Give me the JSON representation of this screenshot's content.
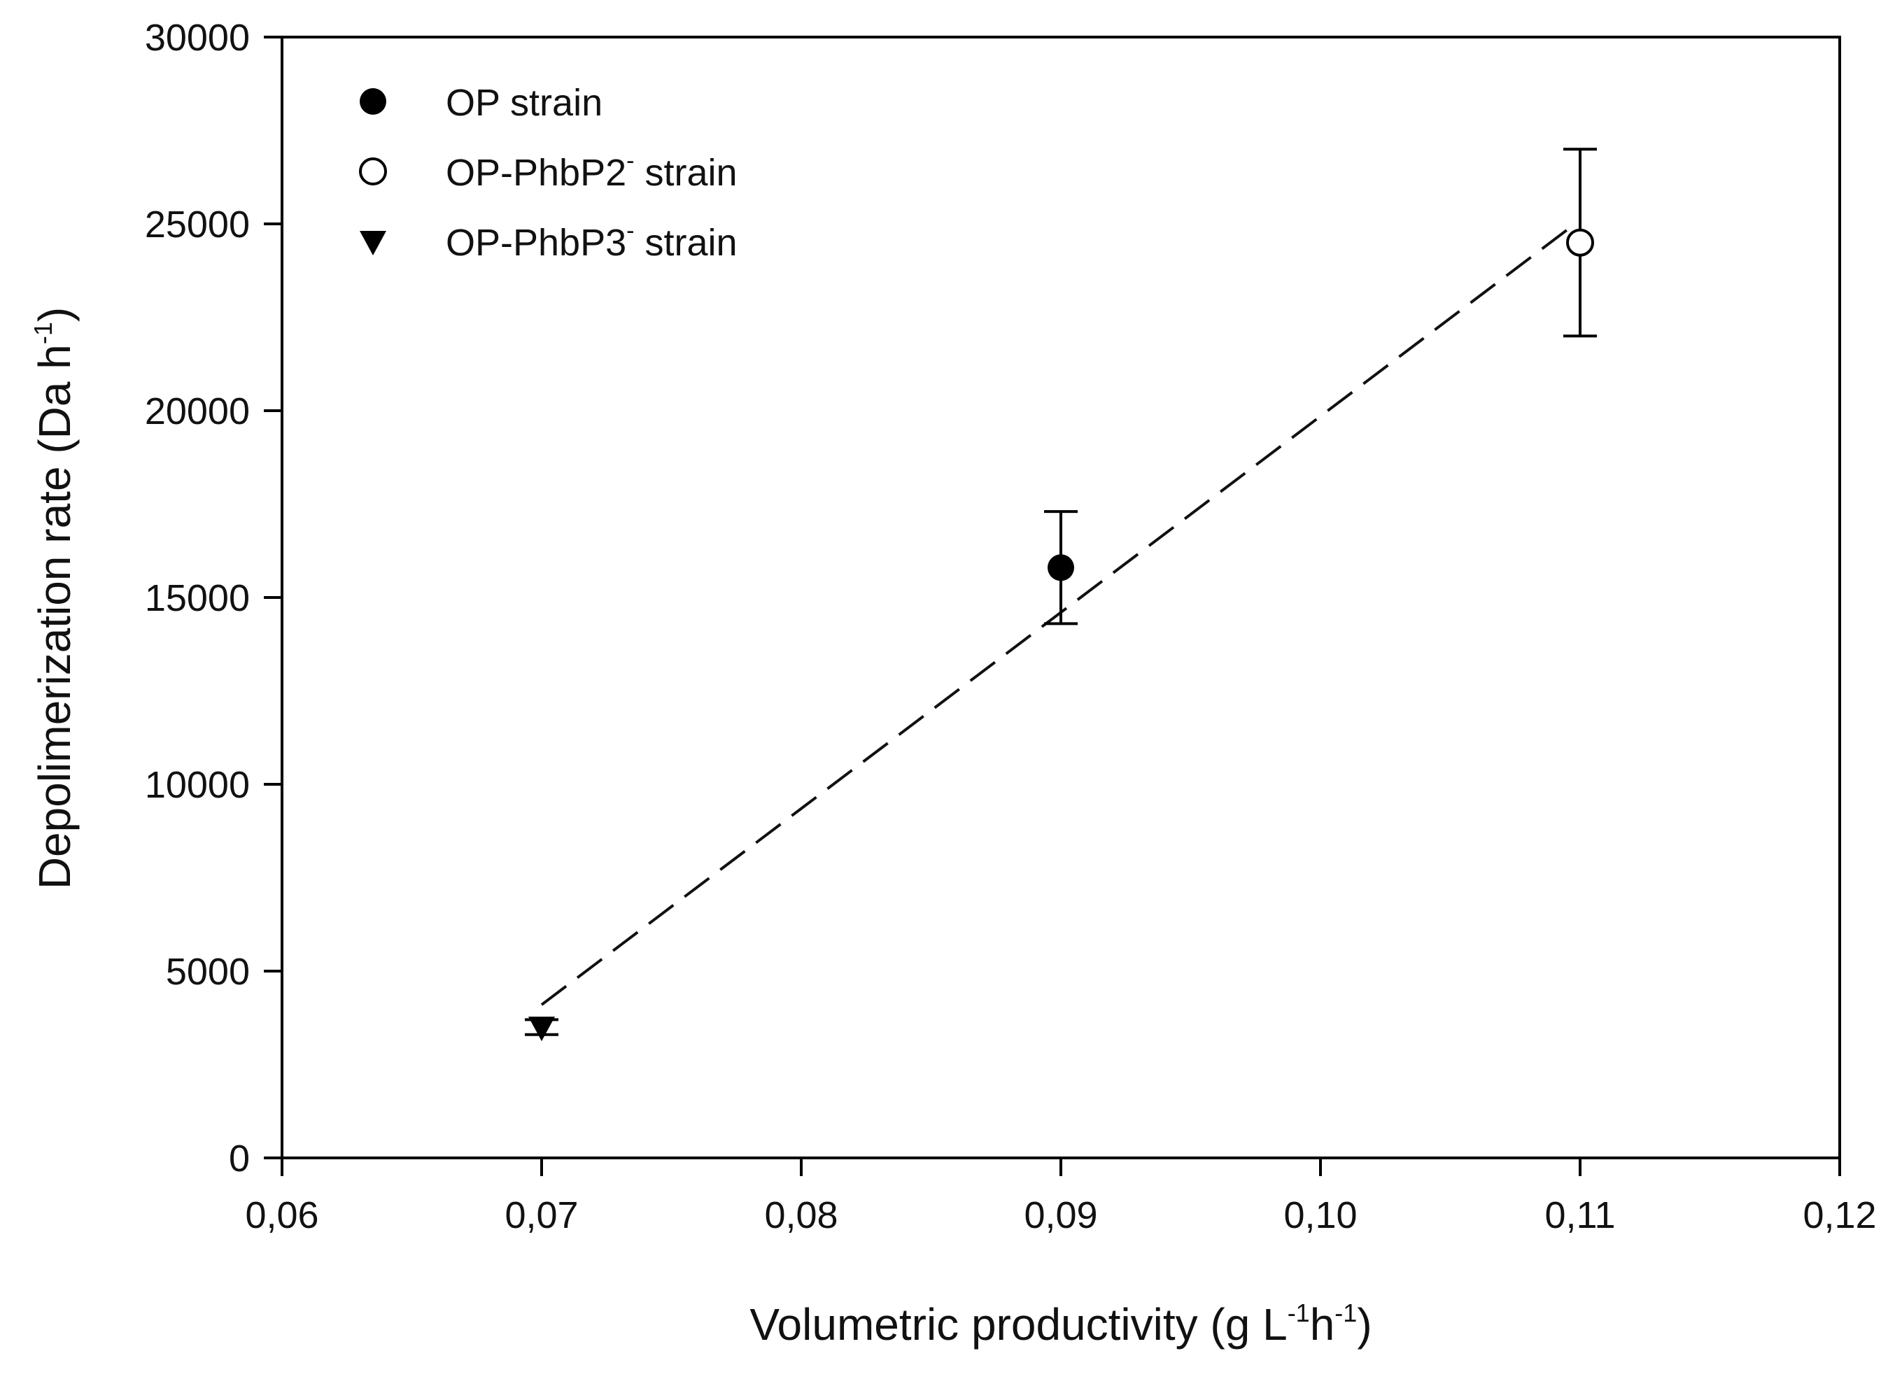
{
  "chart_data": {
    "type": "scatter",
    "title": "",
    "xlabel": "Volumetric productivity (g L",
    "xlabel_parts": [
      "Volumetric productivity (g L",
      "-1",
      "h",
      "-1",
      ")"
    ],
    "ylabel_parts": [
      "Depolimerization rate (Da h",
      "-1",
      ")"
    ],
    "xlim": [
      0.06,
      0.12
    ],
    "ylim": [
      0,
      30000
    ],
    "x_ticks": [
      0.06,
      0.07,
      0.08,
      0.09,
      0.1,
      0.11,
      0.12
    ],
    "x_tick_labels": [
      "0,06",
      "0,07",
      "0,08",
      "0,09",
      "0,10",
      "0,11",
      "0,12"
    ],
    "y_ticks": [
      0,
      5000,
      10000,
      15000,
      20000,
      25000,
      30000
    ],
    "y_tick_labels": [
      "0",
      "5000",
      "10000",
      "15000",
      "20000",
      "25000",
      "30000"
    ],
    "grid": false,
    "legend_position": "top-left",
    "series": [
      {
        "name": "OP strain",
        "label_main": "OP strain",
        "label_sup": "",
        "label_tail": "",
        "marker": "filled-circle",
        "x": [
          0.09
        ],
        "y": [
          15800
        ],
        "err_low": [
          14300
        ],
        "err_high": [
          17300
        ]
      },
      {
        "name": "OP-PhbP2- strain",
        "label_main": "OP-PhbP2",
        "label_sup": "-",
        "label_tail": " strain",
        "marker": "open-circle",
        "x": [
          0.11
        ],
        "y": [
          24500
        ],
        "err_low": [
          22000
        ],
        "err_high": [
          27000
        ]
      },
      {
        "name": "OP-PhbP3- strain",
        "label_main": "OP-PhbP3",
        "label_sup": "-",
        "label_tail": " strain",
        "marker": "filled-triangle-down",
        "x": [
          0.07
        ],
        "y": [
          3500
        ],
        "err_low": [
          3300
        ],
        "err_high": [
          3700
        ]
      }
    ],
    "fit_line": {
      "style": "dashed",
      "x": [
        0.07,
        0.1095
      ],
      "y": [
        4100,
        24840
      ]
    }
  }
}
